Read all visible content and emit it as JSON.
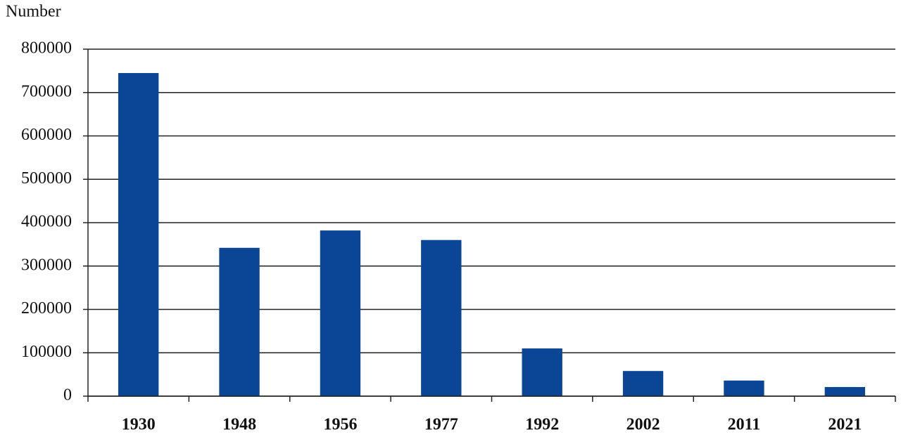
{
  "chart_data": {
    "type": "bar",
    "y_label": "Number",
    "categories": [
      "1930",
      "1948",
      "1956",
      "1977",
      "1992",
      "2002",
      "2011",
      "2021"
    ],
    "values": [
      745000,
      342000,
      382000,
      360000,
      110000,
      58000,
      36000,
      21000
    ],
    "color": "#0b4595",
    "ylim": [
      0,
      800000
    ],
    "yticks": [
      0,
      100000,
      200000,
      300000,
      400000,
      500000,
      600000,
      700000,
      800000
    ],
    "grid": true
  }
}
